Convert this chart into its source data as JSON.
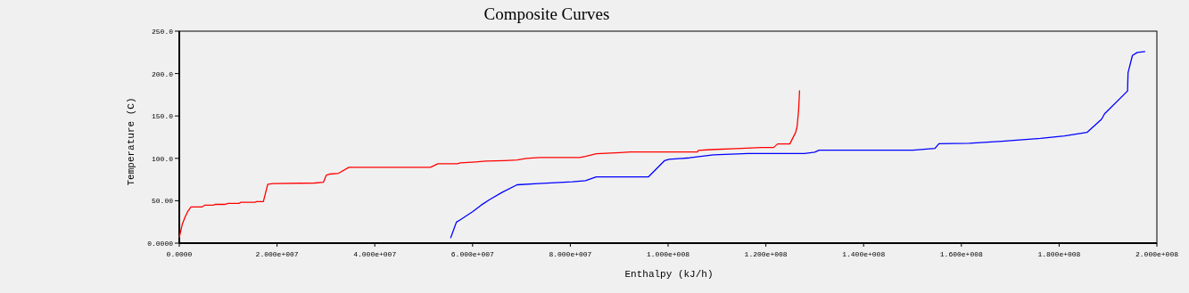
{
  "chart_data": {
    "type": "line",
    "title": "Composite Curves",
    "xlabel": "Enthalpy (kJ/h)",
    "ylabel": "Temperature (C)",
    "xlim": [
      0,
      200000000
    ],
    "ylim": [
      0,
      250
    ],
    "xticks": [
      {
        "value": 0,
        "label": "0.0000"
      },
      {
        "value": 20000000,
        "label": "2.000e+007"
      },
      {
        "value": 40000000,
        "label": "4.000e+007"
      },
      {
        "value": 60000000,
        "label": "6.000e+007"
      },
      {
        "value": 80000000,
        "label": "8.000e+007"
      },
      {
        "value": 100000000,
        "label": "1.000e+008"
      },
      {
        "value": 120000000,
        "label": "1.200e+008"
      },
      {
        "value": 140000000,
        "label": "1.400e+008"
      },
      {
        "value": 160000000,
        "label": "1.600e+008"
      },
      {
        "value": 180000000,
        "label": "1.800e+008"
      },
      {
        "value": 200000000,
        "label": "2.000e+008"
      }
    ],
    "yticks": [
      {
        "value": 0,
        "label": "0.0000"
      },
      {
        "value": 50,
        "label": "50.00"
      },
      {
        "value": 100,
        "label": "100.0"
      },
      {
        "value": 150,
        "label": "150.0"
      },
      {
        "value": 200,
        "label": "200.0"
      },
      {
        "value": 250,
        "label": "250.0"
      }
    ],
    "grid": false,
    "series": [
      {
        "color": "#ff0000",
        "x": [
          0,
          600000,
          1200000,
          1800000,
          2400000,
          4600000,
          5200000,
          7000000,
          7300000,
          9400000,
          10000000,
          12200000,
          12600000,
          15500000,
          15800000,
          17200000,
          18100000,
          19200000,
          27700000,
          29500000,
          30100000,
          30700000,
          32600000,
          34700000,
          51400000,
          52900000,
          56900000,
          57500000,
          60600000,
          62700000,
          66600000,
          69100000,
          71000000,
          73700000,
          81900000,
          83100000,
          85300000,
          90200000,
          92300000,
          106000000,
          106200000,
          108700000,
          113900000,
          119100000,
          121600000,
          122400000,
          124900000,
          126100000,
          126400000,
          126700000,
          126900000
        ],
        "values": [
          6.6,
          22,
          31,
          38,
          42.6,
          42.6,
          44.7,
          44.7,
          45.7,
          45.7,
          46.8,
          46.8,
          48.2,
          48.2,
          48.9,
          48.9,
          69.5,
          70.2,
          70.9,
          71.9,
          80.3,
          81.4,
          82.4,
          89.4,
          89.4,
          93.6,
          93.6,
          94.6,
          95.7,
          96.7,
          97.4,
          98.1,
          99.9,
          100.9,
          100.9,
          102.3,
          105.4,
          106.8,
          107.5,
          107.5,
          109.3,
          110.3,
          111.4,
          112.8,
          112.8,
          117,
          117,
          130.6,
          137.6,
          156.8,
          180.2
        ]
      },
      {
        "color": "#0000ff",
        "x": [
          55500000,
          56700000,
          57500000,
          60000000,
          61800000,
          63600000,
          66000000,
          69100000,
          73400000,
          80400000,
          83100000,
          85300000,
          96000000,
          99300000,
          100200000,
          104400000,
          109300000,
          116300000,
          127900000,
          130000000,
          130900000,
          150100000,
          154600000,
          155400000,
          161600000,
          168300000,
          176200000,
          181100000,
          185700000,
          188700000,
          189300000,
          194000000,
          194100000,
          195000000,
          196000000,
          197600000
        ],
        "values": [
          5.9,
          24.8,
          27.6,
          37,
          45,
          51.7,
          59.7,
          68.8,
          70.2,
          72.3,
          73.7,
          78.2,
          78.2,
          97.4,
          98.8,
          100.6,
          104.1,
          105.8,
          105.8,
          107.2,
          109.6,
          109.6,
          111.7,
          117.3,
          117.7,
          120.1,
          123.6,
          126.4,
          130.6,
          146.3,
          152.6,
          179.5,
          201.1,
          221.4,
          224.9,
          225.9
        ]
      }
    ]
  }
}
